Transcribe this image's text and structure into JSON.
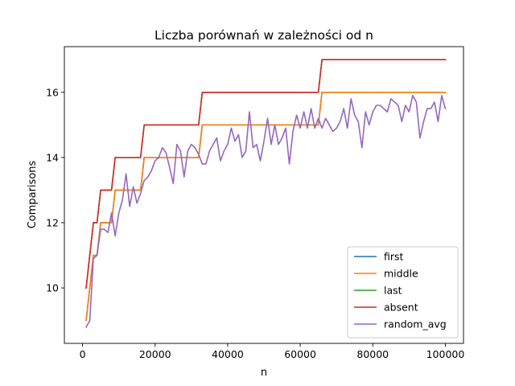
{
  "chart_data": {
    "type": "line",
    "title": "Liczba porównań w zależności od n",
    "xlabel": "n",
    "ylabel": "Comparisons",
    "xlim": [
      -5000,
      105000
    ],
    "ylim": [
      8.3,
      17.4
    ],
    "x_ticks": [
      0,
      20000,
      40000,
      60000,
      80000,
      100000
    ],
    "x_tick_labels": [
      "0",
      "20000",
      "40000",
      "60000",
      "80000",
      "100000"
    ],
    "y_ticks": [
      10,
      12,
      14,
      16
    ],
    "y_tick_labels": [
      "10",
      "12",
      "14",
      "16"
    ],
    "grid": false,
    "legend_position": "lower-right",
    "series": [
      {
        "name": "first",
        "color": "#1f77b4",
        "points": [
          [
            1000,
            9
          ],
          [
            2000,
            10
          ],
          [
            3000,
            11
          ],
          [
            4000,
            11
          ],
          [
            5000,
            12
          ],
          [
            6000,
            12
          ],
          [
            7000,
            12
          ],
          [
            8000,
            12
          ],
          [
            9000,
            13
          ],
          [
            16000,
            13
          ],
          [
            17000,
            14
          ],
          [
            32000,
            14
          ],
          [
            33000,
            15
          ],
          [
            65000,
            15
          ],
          [
            66000,
            16
          ],
          [
            100000,
            16
          ]
        ]
      },
      {
        "name": "middle",
        "color": "#ff7f0e",
        "points": [
          [
            1000,
            9
          ],
          [
            2000,
            10
          ],
          [
            3000,
            11
          ],
          [
            4000,
            11
          ],
          [
            5000,
            12
          ],
          [
            6000,
            12
          ],
          [
            7000,
            12
          ],
          [
            8000,
            12
          ],
          [
            9000,
            13
          ],
          [
            16000,
            13
          ],
          [
            17000,
            14
          ],
          [
            32000,
            14
          ],
          [
            33000,
            15
          ],
          [
            65000,
            15
          ],
          [
            66000,
            16
          ],
          [
            100000,
            16
          ]
        ]
      },
      {
        "name": "last",
        "color": "#2ca02c",
        "points": [
          [
            1000,
            10
          ],
          [
            2000,
            11
          ],
          [
            3000,
            12
          ],
          [
            4000,
            12
          ],
          [
            5000,
            13
          ],
          [
            8000,
            13
          ],
          [
            9000,
            14
          ],
          [
            16000,
            14
          ],
          [
            17000,
            15
          ],
          [
            32000,
            15
          ],
          [
            33000,
            16
          ],
          [
            65000,
            16
          ],
          [
            66000,
            17
          ],
          [
            100000,
            17
          ]
        ]
      },
      {
        "name": "absent",
        "color": "#d62728",
        "points": [
          [
            1000,
            10
          ],
          [
            2000,
            11
          ],
          [
            3000,
            12
          ],
          [
            4000,
            12
          ],
          [
            5000,
            13
          ],
          [
            8000,
            13
          ],
          [
            9000,
            14
          ],
          [
            16000,
            14
          ],
          [
            17000,
            15
          ],
          [
            32000,
            15
          ],
          [
            33000,
            16
          ],
          [
            65000,
            16
          ],
          [
            66000,
            17
          ],
          [
            100000,
            17
          ]
        ]
      },
      {
        "name": "random_avg",
        "color": "#9467bd",
        "points": [
          [
            1000,
            8.8
          ],
          [
            2000,
            9.0
          ],
          [
            3000,
            10.9
          ],
          [
            4000,
            11.0
          ],
          [
            5000,
            11.8
          ],
          [
            6000,
            11.8
          ],
          [
            7000,
            11.7
          ],
          [
            8000,
            12.3
          ],
          [
            9000,
            11.6
          ],
          [
            10000,
            12.3
          ],
          [
            11000,
            12.7
          ],
          [
            12000,
            13.5
          ],
          [
            13000,
            12.5
          ],
          [
            14000,
            13.1
          ],
          [
            15000,
            12.6
          ],
          [
            16000,
            12.9
          ],
          [
            17000,
            13.3
          ],
          [
            18000,
            13.4
          ],
          [
            19000,
            13.6
          ],
          [
            20000,
            13.9
          ],
          [
            21000,
            14.0
          ],
          [
            22000,
            14.3
          ],
          [
            23000,
            14.15
          ],
          [
            24000,
            13.7
          ],
          [
            25000,
            13.2
          ],
          [
            26000,
            14.4
          ],
          [
            27000,
            14.2
          ],
          [
            28000,
            13.4
          ],
          [
            29000,
            14.2
          ],
          [
            30000,
            14.4
          ],
          [
            31000,
            14.3
          ],
          [
            32000,
            14.1
          ],
          [
            33000,
            13.8
          ],
          [
            34000,
            13.8
          ],
          [
            35000,
            14.2
          ],
          [
            36000,
            14.4
          ],
          [
            37000,
            14.6
          ],
          [
            38000,
            13.9
          ],
          [
            39000,
            14.2
          ],
          [
            40000,
            14.4
          ],
          [
            41000,
            14.9
          ],
          [
            42000,
            14.5
          ],
          [
            43000,
            14.7
          ],
          [
            44000,
            14.0
          ],
          [
            45000,
            14.2
          ],
          [
            46000,
            15.4
          ],
          [
            47000,
            14.3
          ],
          [
            48000,
            14.4
          ],
          [
            49000,
            13.9
          ],
          [
            50000,
            14.5
          ],
          [
            51000,
            15.2
          ],
          [
            52000,
            14.4
          ],
          [
            53000,
            15.0
          ],
          [
            54000,
            14.4
          ],
          [
            55000,
            14.6
          ],
          [
            56000,
            14.9
          ],
          [
            57000,
            13.8
          ],
          [
            58000,
            14.8
          ],
          [
            59000,
            15.3
          ],
          [
            60000,
            14.9
          ],
          [
            61000,
            15.4
          ],
          [
            62000,
            14.9
          ],
          [
            63000,
            15.5
          ],
          [
            64000,
            14.9
          ],
          [
            65000,
            15.2
          ],
          [
            66000,
            14.9
          ],
          [
            67000,
            15.2
          ],
          [
            68000,
            15.0
          ],
          [
            69000,
            14.8
          ],
          [
            70000,
            14.9
          ],
          [
            71000,
            15.1
          ],
          [
            72000,
            15.5
          ],
          [
            73000,
            14.9
          ],
          [
            74000,
            15.8
          ],
          [
            75000,
            15.3
          ],
          [
            76000,
            15.1
          ],
          [
            77000,
            14.3
          ],
          [
            78000,
            15.4
          ],
          [
            79000,
            15.0
          ],
          [
            80000,
            15.4
          ],
          [
            81000,
            15.6
          ],
          [
            82000,
            15.6
          ],
          [
            83000,
            15.5
          ],
          [
            84000,
            15.4
          ],
          [
            85000,
            15.8
          ],
          [
            86000,
            15.7
          ],
          [
            87000,
            15.6
          ],
          [
            88000,
            15.1
          ],
          [
            89000,
            15.6
          ],
          [
            90000,
            15.4
          ],
          [
            91000,
            15.9
          ],
          [
            92000,
            15.7
          ],
          [
            93000,
            14.6
          ],
          [
            94000,
            15.1
          ],
          [
            95000,
            15.5
          ],
          [
            96000,
            15.5
          ],
          [
            97000,
            15.7
          ],
          [
            98000,
            15.1
          ],
          [
            99000,
            15.9
          ],
          [
            100000,
            15.5
          ]
        ]
      }
    ]
  }
}
